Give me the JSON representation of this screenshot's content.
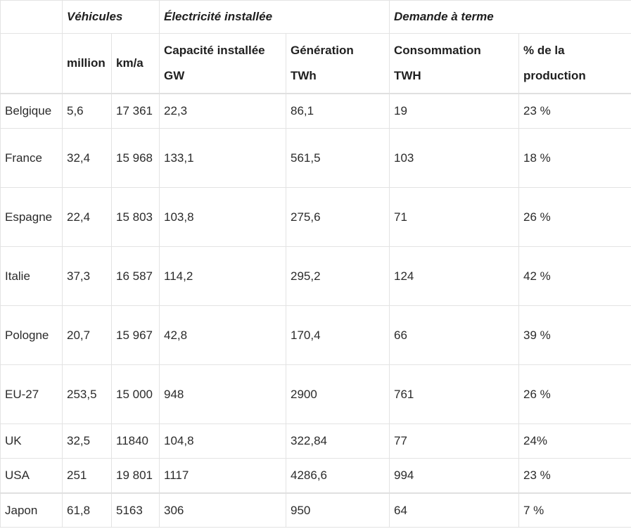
{
  "headers": {
    "group_vehicules": "Véhicules",
    "group_electricite": "Électricité installée",
    "group_demande": "Demande à terme",
    "col_million": "million",
    "col_kma": "km/a",
    "col_capacite_line1": "Capacité installée",
    "col_capacite_line2": "GW",
    "col_generation_line1": "Génération",
    "col_generation_line2": "TWh",
    "col_consommation_line1": "Consommation",
    "col_consommation_line2": "TWH",
    "col_pct_line1": "% de la",
    "col_pct_line2": "production"
  },
  "rows": [
    {
      "country": "Belgique",
      "million": "5,6",
      "km": "17 361",
      "gw": "22,3",
      "twh": "86,1",
      "conso": "19",
      "pct": "23 %"
    },
    {
      "country": "France",
      "million": "32,4",
      "km": "15 968",
      "gw": "133,1",
      "twh": "561,5",
      "conso": "103",
      "pct": "18 %"
    },
    {
      "country": "Espagne",
      "million": "22,4",
      "km": "15 803",
      "gw": "103,8",
      "twh": "275,6",
      "conso": "71",
      "pct": "26 %"
    },
    {
      "country": "Italie",
      "million": "37,3",
      "km": "16 587",
      "gw": "114,2",
      "twh": "295,2",
      "conso": "124",
      "pct": "42 %"
    },
    {
      "country": "Pologne",
      "million": "20,7",
      "km": "15 967",
      "gw": "42,8",
      "twh": "170,4",
      "conso": "66",
      "pct": "39 %"
    },
    {
      "country": "EU-27",
      "million": "253,5",
      "km": "15 000",
      "gw": "948",
      "twh": "2900",
      "conso": "761",
      "pct": "26 %"
    },
    {
      "country": "UK",
      "million": "32,5",
      "km": "11840",
      "gw": "104,8",
      "twh": "322,84",
      "conso": "77",
      "pct": "24%"
    },
    {
      "country": "USA",
      "million": "251",
      "km": "19 801",
      "gw": "1117",
      "twh": "4286,6",
      "conso": "994",
      "pct": "23 %"
    },
    {
      "country": "Japon",
      "million": "61,8",
      "km": "5163",
      "gw": "306",
      "twh": "950",
      "conso": "64",
      "pct": "7 %"
    }
  ]
}
